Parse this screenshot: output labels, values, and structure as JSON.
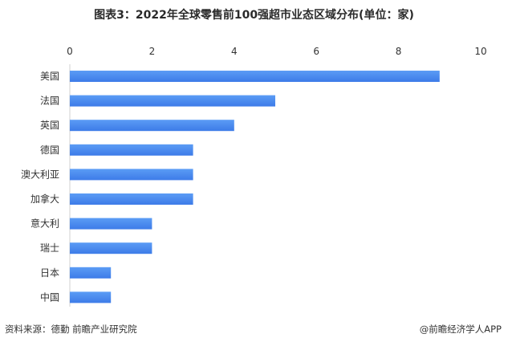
{
  "chart_data": {
    "type": "bar",
    "orientation": "horizontal",
    "title": "图表3：2022年全球零售前100强超市业态区域分布(单位：家)",
    "xlabel": "",
    "ylabel": "",
    "xlim": [
      0,
      10
    ],
    "ticks": [
      "0",
      "2",
      "4",
      "6",
      "8",
      "10"
    ],
    "axis_position": "top",
    "grid": false,
    "categories": [
      "美国",
      "法国",
      "英国",
      "德国",
      "澳大利亚",
      "加拿大",
      "意大利",
      "瑞士",
      "日本",
      "中国"
    ],
    "values": [
      9,
      5,
      4,
      3,
      3,
      3,
      2,
      2,
      1,
      1
    ],
    "bar_color": "#3d7be8",
    "bar_color_light": "#5b9cf5"
  },
  "footer": {
    "source": "资料来源：德勤 前瞻产业研究院",
    "brand": "@前瞻经济学人APP"
  }
}
